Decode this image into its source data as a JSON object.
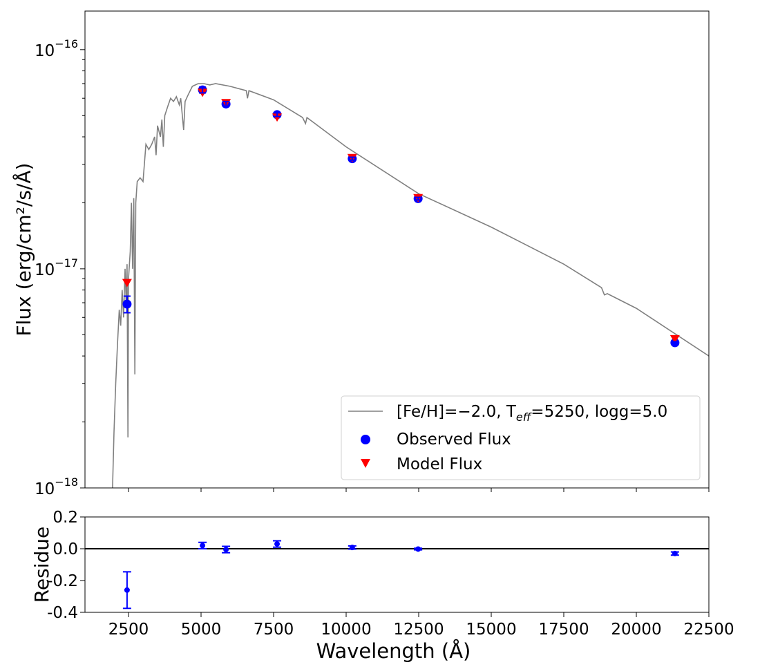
{
  "chart_data": [
    {
      "type": "line+scatter",
      "panel": "flux",
      "xlabel": "Wavelength (Å)",
      "ylabel": "Flux (erg/cm²/s/Å)",
      "yscale": "log",
      "xlim": [
        1000,
        22500
      ],
      "ylim": [
        1e-18,
        1.5e-16
      ],
      "ytick_labels": [
        {
          "value": 1e-16,
          "base": "10",
          "exp": "−16"
        },
        {
          "value": 1e-17,
          "base": "10",
          "exp": "−17"
        },
        {
          "value": 1e-18,
          "base": "10",
          "exp": "−18"
        }
      ],
      "legend": {
        "placement": "lower-right",
        "model_line": {
          "prefix": "[Fe/H]=−2.0, T",
          "sub": "eff",
          "suffix": "=5250, logg=5.0"
        },
        "observed": "Observed Flux",
        "model": "Model Flux"
      },
      "colors": {
        "spectrum": "#808080",
        "observed": "#0000ff",
        "model": "#ff0000"
      },
      "spectrum": [
        [
          1950,
          1e-18
        ],
        [
          2000,
          1.8e-18
        ],
        [
          2060,
          3e-18
        ],
        [
          2120,
          4.5e-18
        ],
        [
          2180,
          6.5e-18
        ],
        [
          2230,
          5.5e-18
        ],
        [
          2280,
          8e-18
        ],
        [
          2330,
          6e-18
        ],
        [
          2380,
          1e-17
        ],
        [
          2420,
          7e-18
        ],
        [
          2450,
          1.05e-17
        ],
        [
          2480,
          1.7e-18
        ],
        [
          2500,
          9e-18
        ],
        [
          2560,
          1.2e-17
        ],
        [
          2600,
          2e-17
        ],
        [
          2640,
          1e-17
        ],
        [
          2680,
          2.1e-17
        ],
        [
          2720,
          3.3e-18
        ],
        [
          2750,
          2e-17
        ],
        [
          2800,
          2.5e-17
        ],
        [
          2900,
          2.6e-17
        ],
        [
          3000,
          2.5e-17
        ],
        [
          3100,
          3.7e-17
        ],
        [
          3200,
          3.5e-17
        ],
        [
          3300,
          3.7e-17
        ],
        [
          3400,
          4e-17
        ],
        [
          3450,
          3.3e-17
        ],
        [
          3500,
          4.5e-17
        ],
        [
          3600,
          4e-17
        ],
        [
          3650,
          4.8e-17
        ],
        [
          3700,
          3.6e-17
        ],
        [
          3750,
          5e-17
        ],
        [
          3850,
          5.5e-17
        ],
        [
          3950,
          6e-17
        ],
        [
          4050,
          5.8e-17
        ],
        [
          4150,
          6.1e-17
        ],
        [
          4250,
          5.6e-17
        ],
        [
          4300,
          6e-17
        ],
        [
          4400,
          4.3e-17
        ],
        [
          4450,
          5.8e-17
        ],
        [
          4550,
          6.2e-17
        ],
        [
          4700,
          6.8e-17
        ],
        [
          4900,
          7e-17
        ],
        [
          5100,
          7e-17
        ],
        [
          5300,
          6.9e-17
        ],
        [
          5500,
          7e-17
        ],
        [
          6000,
          6.8e-17
        ],
        [
          6560,
          6.5e-17
        ],
        [
          6600,
          6e-17
        ],
        [
          6650,
          6.5e-17
        ],
        [
          7500,
          5.9e-17
        ],
        [
          8500,
          4.9e-17
        ],
        [
          8600,
          4.6e-17
        ],
        [
          8650,
          4.9e-17
        ],
        [
          10000,
          3.6e-17
        ],
        [
          12500,
          2.2e-17
        ],
        [
          15000,
          1.55e-17
        ],
        [
          17500,
          1.05e-17
        ],
        [
          18800,
          8.2e-18
        ],
        [
          18900,
          7.6e-18
        ],
        [
          19000,
          7.7e-18
        ],
        [
          20000,
          6.6e-18
        ],
        [
          22500,
          4e-18
        ]
      ],
      "observed": [
        {
          "x": 2450,
          "y": 6.9e-18,
          "yerr": 6e-19
        },
        {
          "x": 5050,
          "y": 6.55e-17,
          "yerr": 2e-18
        },
        {
          "x": 5860,
          "y": 5.65e-17,
          "yerr": 1.5e-18
        },
        {
          "x": 7620,
          "y": 5.05e-17,
          "yerr": 1e-18
        },
        {
          "x": 10210,
          "y": 3.18e-17,
          "yerr": 5e-19
        },
        {
          "x": 12480,
          "y": 2.09e-17,
          "yerr": 3e-19
        },
        {
          "x": 21330,
          "y": 4.6e-18,
          "yerr": 5e-20
        }
      ],
      "model": [
        {
          "x": 2450,
          "y": 8.6e-18
        },
        {
          "x": 5050,
          "y": 6.35e-17
        },
        {
          "x": 5860,
          "y": 5.7e-17
        },
        {
          "x": 7620,
          "y": 4.9e-17
        },
        {
          "x": 10210,
          "y": 3.2e-17
        },
        {
          "x": 12480,
          "y": 2.1e-17
        },
        {
          "x": 21330,
          "y": 4.77e-18
        }
      ]
    },
    {
      "type": "scatter",
      "panel": "residue",
      "xlabel": "Wavelength (Å)",
      "ylabel": "Residue",
      "xlim": [
        1000,
        22500
      ],
      "ylim": [
        -0.4,
        0.2
      ],
      "xticks": [
        2500,
        5000,
        7500,
        10000,
        12500,
        15000,
        17500,
        20000,
        22500
      ],
      "xtick_labels": [
        "2500",
        "5000",
        "7500",
        "10000",
        "12500",
        "15000",
        "17500",
        "20000",
        "22500"
      ],
      "yticks": [
        0.2,
        0.0,
        -0.2,
        -0.4
      ],
      "ytick_labels": [
        "0.2",
        "0.0",
        "-0.2",
        "-0.4"
      ],
      "hline": 0,
      "points": [
        {
          "x": 2450,
          "y": -0.26,
          "yerr": 0.115
        },
        {
          "x": 5050,
          "y": 0.02,
          "yerr": 0.02
        },
        {
          "x": 5860,
          "y": -0.005,
          "yerr": 0.02
        },
        {
          "x": 7620,
          "y": 0.03,
          "yerr": 0.02
        },
        {
          "x": 10210,
          "y": 0.008,
          "yerr": 0.01
        },
        {
          "x": 12480,
          "y": -0.002,
          "yerr": 0.005
        },
        {
          "x": 21330,
          "y": -0.03,
          "yerr": 0.01
        }
      ]
    }
  ]
}
